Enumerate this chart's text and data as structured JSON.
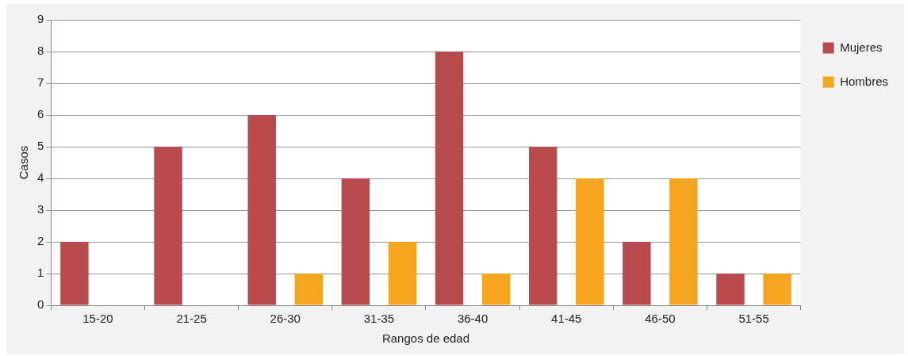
{
  "chart_data": {
    "type": "bar",
    "xlabel": "Rangos de edad",
    "ylabel": "Casos",
    "categories": [
      "15-20",
      "21-25",
      "26-30",
      "31-35",
      "36-40",
      "41-45",
      "46-50",
      "51-55"
    ],
    "series": [
      {
        "name": "Mujeres",
        "color": "#b94a4d",
        "values": [
          2,
          5,
          6,
          4,
          8,
          5,
          2,
          1
        ]
      },
      {
        "name": "Hombres",
        "color": "#f6a521",
        "values": [
          0,
          0,
          1,
          2,
          1,
          4,
          4,
          1
        ]
      }
    ],
    "ylim": [
      0,
      9
    ],
    "yticks": [
      0,
      1,
      2,
      3,
      4,
      5,
      6,
      7,
      8,
      9
    ],
    "grid": "y",
    "legend": "right"
  }
}
